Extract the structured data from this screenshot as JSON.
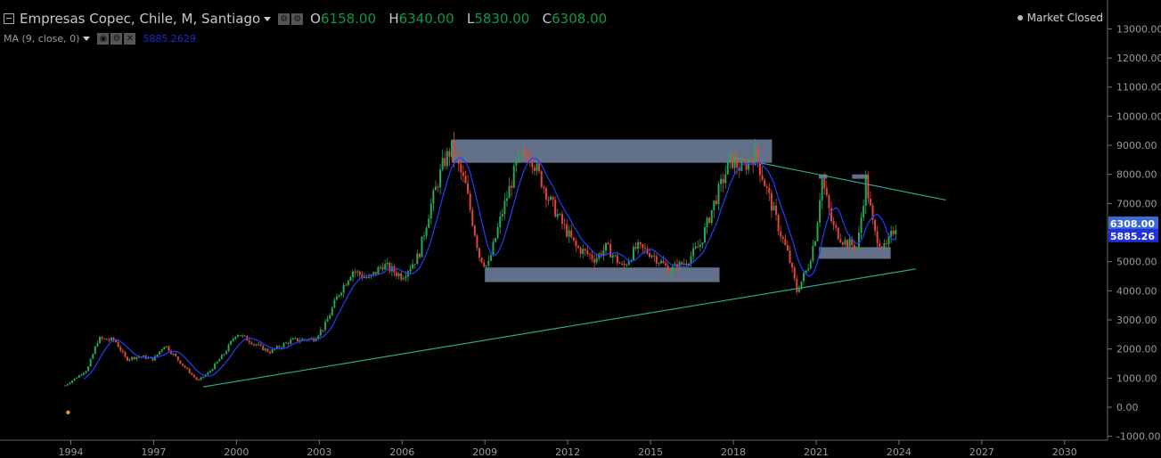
{
  "header": {
    "symbol": "Empresas Copec, Chile, M, Santiago",
    "open_label": "O",
    "open": "6158.00",
    "high_label": "H",
    "high": "6340.00",
    "low_label": "L",
    "low": "5830.00",
    "close_label": "C",
    "close": "6308.00"
  },
  "indicator": {
    "label": "MA (9, close, 0)",
    "value": "5885.2629"
  },
  "market_status": "Market Closed",
  "colors": {
    "up": "#26a65b",
    "down": "#e0463a",
    "ma": "#1f3fff",
    "zone": "#7f8fb0",
    "trendline": "#2aa890",
    "price_tag": "#3b6bd8",
    "ma_tag": "#2030e0"
  },
  "chart_data": {
    "type": "candlestick",
    "interval": "monthly",
    "x_range": [
      1993.7,
      2031.5
    ],
    "ylim": [
      -1000,
      13500
    ],
    "x_ticks": [
      "1994",
      "1997",
      "2000",
      "2003",
      "2006",
      "2009",
      "2012",
      "2015",
      "2018",
      "2021",
      "2024",
      "2027",
      "2030"
    ],
    "x_tick_values": [
      1994,
      1997,
      2000,
      2003,
      2006,
      2009,
      2012,
      2015,
      2018,
      2021,
      2024,
      2027,
      2030
    ],
    "y_ticks": [
      "13000.00",
      "12000.00",
      "11000.00",
      "10000.00",
      "9000.00",
      "8000.00",
      "7000.00",
      "6000.00",
      "5000.00",
      "4000.00",
      "3000.00",
      "2000.00",
      "1000.00",
      "0.00",
      "-1000.00"
    ],
    "y_tick_values": [
      13000,
      12000,
      11000,
      10000,
      9000,
      8000,
      7000,
      6000,
      5000,
      4000,
      3000,
      2000,
      1000,
      0,
      -1000
    ],
    "price_path": [
      [
        1993.8,
        750
      ],
      [
        1994.6,
        1300
      ],
      [
        1995.0,
        2350
      ],
      [
        1995.6,
        2300
      ],
      [
        1996.0,
        1650
      ],
      [
        1996.5,
        1750
      ],
      [
        1997.0,
        1650
      ],
      [
        1997.4,
        2150
      ],
      [
        1998.0,
        1500
      ],
      [
        1998.6,
        900
      ],
      [
        1999.0,
        1200
      ],
      [
        1999.6,
        1900
      ],
      [
        2000.0,
        2550
      ],
      [
        2000.7,
        2150
      ],
      [
        2001.2,
        1900
      ],
      [
        2002.0,
        2300
      ],
      [
        2002.8,
        2350
      ],
      [
        2003.2,
        2800
      ],
      [
        2003.7,
        3900
      ],
      [
        2004.2,
        4700
      ],
      [
        2004.8,
        4400
      ],
      [
        2005.3,
        4900
      ],
      [
        2006.0,
        4500
      ],
      [
        2006.6,
        5200
      ],
      [
        2007.0,
        6800
      ],
      [
        2007.5,
        8400
      ],
      [
        2007.8,
        8900
      ],
      [
        2008.3,
        7600
      ],
      [
        2008.8,
        5200
      ],
      [
        2009.1,
        4800
      ],
      [
        2009.6,
        6600
      ],
      [
        2010.2,
        8500
      ],
      [
        2010.6,
        8800
      ],
      [
        2011.3,
        7200
      ],
      [
        2011.8,
        6300
      ],
      [
        2012.3,
        5500
      ],
      [
        2013.0,
        5100
      ],
      [
        2013.4,
        5500
      ],
      [
        2014.0,
        4800
      ],
      [
        2014.5,
        5500
      ],
      [
        2015.0,
        5300
      ],
      [
        2015.7,
        4700
      ],
      [
        2016.3,
        5000
      ],
      [
        2016.8,
        5600
      ],
      [
        2017.3,
        7000
      ],
      [
        2017.9,
        8500
      ],
      [
        2018.3,
        8200
      ],
      [
        2018.8,
        8700
      ],
      [
        2019.3,
        7200
      ],
      [
        2019.7,
        6000
      ],
      [
        2020.0,
        5200
      ],
      [
        2020.3,
        4000
      ],
      [
        2020.7,
        4800
      ],
      [
        2021.0,
        6000
      ],
      [
        2021.2,
        7900
      ],
      [
        2021.6,
        6200
      ],
      [
        2022.0,
        5700
      ],
      [
        2022.5,
        5500
      ],
      [
        2022.8,
        7800
      ],
      [
        2023.1,
        6000
      ],
      [
        2023.5,
        5400
      ],
      [
        2023.9,
        6300
      ]
    ],
    "ma_length": 9,
    "zones": [
      {
        "x": [
          2007.8,
          2019.4
        ],
        "y": [
          8400,
          9200
        ]
      },
      {
        "x": [
          2009.0,
          2017.5
        ],
        "y": [
          4300,
          4800
        ]
      },
      {
        "x": [
          2021.1,
          2021.4
        ],
        "y": [
          7850,
          8000
        ]
      },
      {
        "x": [
          2022.3,
          2022.9
        ],
        "y": [
          7850,
          8000
        ]
      },
      {
        "x": [
          2021.1,
          2023.7
        ],
        "y": [
          5100,
          5500
        ]
      }
    ],
    "trendlines": [
      {
        "from": [
          1998.8,
          700
        ],
        "to": [
          2024.6,
          4750
        ]
      },
      {
        "from": [
          2017.9,
          8600
        ],
        "to": [
          2025.7,
          7120
        ]
      }
    ],
    "last_price": {
      "value": 6308.0,
      "label": "6308.00"
    },
    "ma_last": {
      "value": 5885.26,
      "label": "5885.26"
    },
    "marker": {
      "x": 1993.9,
      "y": -180
    }
  }
}
